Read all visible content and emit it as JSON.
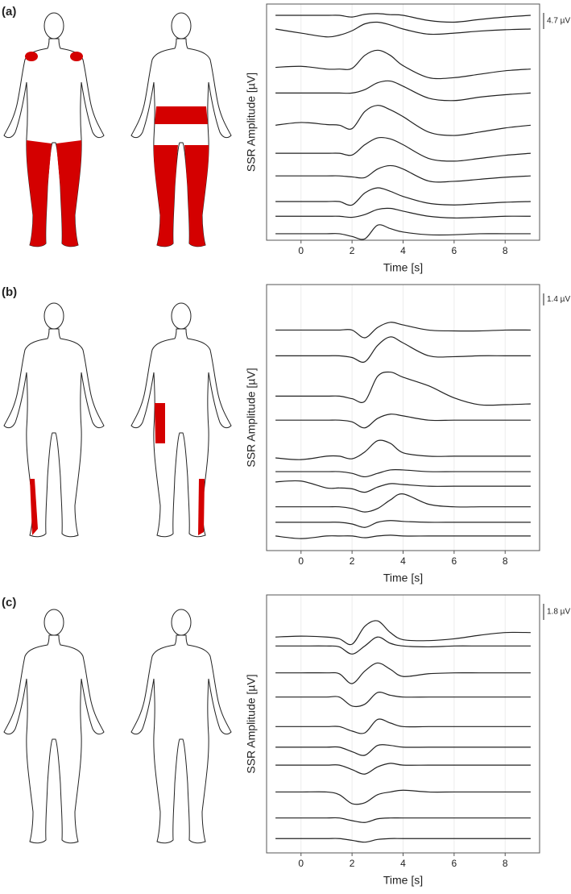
{
  "chart_data": [
    {
      "type": "line",
      "panel_label": "(a)",
      "xlabel": "Time [s]",
      "ylabel": "SSR Amplitude [µV]",
      "xlim": [
        -1.35,
        9.35
      ],
      "ylim": [
        0,
        69
      ],
      "xticks": [
        0,
        2,
        4,
        6,
        8
      ],
      "grid": true,
      "scale_bar": {
        "value": 4.7,
        "label": "4.7 µV"
      },
      "x": [
        -1,
        0,
        1,
        1.5,
        2,
        2.5,
        3,
        3.5,
        4,
        5,
        6,
        7,
        8,
        9
      ],
      "series": [
        {
          "color": "#222222",
          "values": [
            65.7,
            65.7,
            65.7,
            65.7,
            65.2,
            66.0,
            66.2,
            65.9,
            65.7,
            64.2,
            63.7,
            64.5,
            65.2,
            65.7
          ]
        },
        {
          "color": "#222222",
          "values": [
            61.7,
            60.5,
            59.4,
            59.9,
            61.2,
            63.2,
            63.7,
            62.9,
            61.7,
            60.2,
            60.5,
            61.1,
            61.5,
            61.7
          ]
        },
        {
          "color": "#222222",
          "values": [
            50.5,
            50.8,
            50,
            50,
            50.2,
            54,
            55.5,
            54,
            51,
            47.5,
            47.5,
            48.5,
            49.5,
            50
          ]
        },
        {
          "color": "#222222",
          "values": [
            43,
            43,
            43,
            43,
            43,
            44,
            46,
            46.5,
            45,
            41.5,
            40.8,
            41.8,
            42.5,
            43
          ]
        },
        {
          "color": "#222222",
          "values": [
            33.6,
            34.4,
            33.8,
            33.6,
            32.6,
            37.6,
            39.4,
            38.1,
            36.1,
            31.6,
            30.6,
            31.6,
            32.8,
            33.6
          ]
        },
        {
          "color": "#222222",
          "values": [
            25.4,
            25.4,
            25.4,
            25.4,
            24.9,
            27.9,
            29.9,
            29.6,
            27.9,
            23.9,
            23.1,
            23.9,
            24.8,
            25.4
          ]
        },
        {
          "color": "#222222",
          "values": [
            18.8,
            18.8,
            18.8,
            18.8,
            18.5,
            18.3,
            20.8,
            21.8,
            20.8,
            17.3,
            17.2,
            17.8,
            18.4,
            18.8
          ]
        },
        {
          "color": "#222222",
          "values": [
            11.3,
            11.3,
            11.3,
            11.3,
            10.3,
            13.8,
            15.3,
            14.3,
            12.8,
            10.8,
            10.3,
            10.7,
            11.1,
            11.3
          ]
        },
        {
          "color": "#222222",
          "values": [
            7,
            7,
            7,
            7,
            6.7,
            7.5,
            9,
            9.3,
            8.5,
            7,
            6.5,
            6.7,
            7,
            7
          ]
        },
        {
          "color": "#222222",
          "values": [
            1.9,
            1.9,
            1.9,
            1.9,
            1.1,
            0.4,
            4.4,
            3.4,
            2.4,
            1.6,
            1.6,
            1.9,
            1.9,
            1.9
          ]
        }
      ]
    },
    {
      "type": "line",
      "panel_label": "(b)",
      "xlabel": "Time [s]",
      "ylabel": "SSR Amplitude [µV]",
      "xlim": [
        -1.35,
        9.35
      ],
      "ylim": [
        0,
        31
      ],
      "xticks": [
        0,
        2,
        4,
        6,
        8
      ],
      "grid": true,
      "scale_bar": {
        "value": 1.4,
        "label": "1.4 µV"
      },
      "x": [
        -1,
        0,
        1,
        1.5,
        2,
        2.5,
        3,
        3.5,
        4,
        5,
        6,
        7,
        8,
        9
      ],
      "series": [
        {
          "color": "#222222",
          "values": [
            25.7,
            25.7,
            25.7,
            25.7,
            25.7,
            24.8,
            26,
            26.6,
            26.3,
            25.7,
            25.6,
            25.6,
            25.7,
            25.7
          ]
        },
        {
          "color": "#222222",
          "values": [
            22.7,
            22.7,
            22.7,
            22.7,
            22.5,
            22,
            23.9,
            24.9,
            24.2,
            22.7,
            22.6,
            22.7,
            22.7,
            22.7
          ]
        },
        {
          "color": "#222222",
          "values": [
            18,
            18,
            18,
            18,
            17.7,
            17.4,
            20.3,
            20.8,
            20.2,
            19.2,
            17.8,
            17,
            17,
            17.1
          ]
        },
        {
          "color": "#222222",
          "values": [
            15.2,
            15.2,
            15.2,
            15.2,
            15,
            14.3,
            15.4,
            15.9,
            15.7,
            15.2,
            15.2,
            15.2,
            15.2,
            15.2
          ]
        },
        {
          "color": "#222222",
          "values": [
            10.8,
            10.6,
            11,
            11,
            10.7,
            11.5,
            12.8,
            12.5,
            11.4,
            11,
            11,
            11,
            11,
            11
          ]
        },
        {
          "color": "#222222",
          "values": [
            9.2,
            9.2,
            9.2,
            9.2,
            9,
            8.6,
            9,
            9.4,
            9.4,
            9.2,
            9.2,
            9.2,
            9.2,
            9.2
          ]
        },
        {
          "color": "#222222",
          "values": [
            8,
            8.1,
            7.3,
            7.3,
            7.2,
            6.8,
            7.4,
            7.8,
            7.7,
            7.5,
            7.5,
            7.5,
            7.5,
            7.5
          ]
        },
        {
          "color": "#222222",
          "values": [
            5.1,
            5.1,
            5.1,
            5.1,
            4.9,
            4.5,
            4.9,
            5.9,
            6.6,
            5.4,
            5.1,
            5.1,
            5.1,
            5.1
          ]
        },
        {
          "color": "#222222",
          "values": [
            3.3,
            3.3,
            3.3,
            3.3,
            3.1,
            2.7,
            3.3,
            3.5,
            3.4,
            3.3,
            3.3,
            3.3,
            3.3,
            3.3
          ]
        },
        {
          "color": "#222222",
          "values": [
            1.7,
            1.4,
            1.7,
            1.7,
            1.7,
            1.5,
            1.7,
            1.8,
            1.7,
            1.7,
            1.7,
            1.7,
            1.7,
            1.7
          ]
        }
      ]
    },
    {
      "type": "line",
      "panel_label": "(c)",
      "xlabel": "Time [s]",
      "ylabel": "SSR Amplitude [µV]",
      "xlim": [
        -1.35,
        9.35
      ],
      "ylim": [
        0,
        28.8
      ],
      "xticks": [
        0,
        2,
        4,
        6,
        8
      ],
      "grid": true,
      "scale_bar": {
        "value": 1.8,
        "label": "1.8 µV"
      },
      "x": [
        -1,
        0,
        1,
        1.5,
        2,
        2.5,
        3,
        3.5,
        4,
        5,
        6,
        7,
        8,
        9
      ],
      "series": [
        {
          "color": "#222222",
          "values": [
            24.1,
            24.2,
            24.1,
            23.9,
            23.3,
            25.3,
            25.9,
            24.6,
            23.8,
            23.7,
            23.9,
            24.3,
            24.6,
            24.6
          ]
        },
        {
          "color": "#222222",
          "values": [
            23.1,
            23.1,
            23.1,
            23,
            22.2,
            23.1,
            24.1,
            23.4,
            23.1,
            23,
            23.1,
            23.1,
            23.1,
            23.1
          ]
        },
        {
          "color": "#222222",
          "values": [
            20.1,
            20.1,
            20.1,
            20,
            18.9,
            20.3,
            21.2,
            20.5,
            19.7,
            20,
            20.1,
            20.1,
            20.1,
            20.1
          ]
        },
        {
          "color": "#222222",
          "values": [
            17.4,
            17.4,
            17.4,
            17.4,
            16.4,
            16.6,
            17.9,
            17.6,
            17.4,
            17.4,
            17.4,
            17.4,
            17.4,
            17.4
          ]
        },
        {
          "color": "#222222",
          "values": [
            14.1,
            14.1,
            14.1,
            14.1,
            13.6,
            13.4,
            14.9,
            14.5,
            14.1,
            14.1,
            14.1,
            14.1,
            14.1,
            14.1
          ]
        },
        {
          "color": "#222222",
          "values": [
            11.8,
            11.8,
            11.8,
            11.8,
            11.3,
            10.9,
            12,
            12,
            11.8,
            11.8,
            11.8,
            11.8,
            11.8,
            11.8
          ]
        },
        {
          "color": "#222222",
          "values": [
            9.8,
            9.8,
            9.8,
            9.8,
            9.3,
            8.8,
            9.6,
            10,
            9.8,
            9.8,
            9.8,
            9.8,
            9.8,
            9.8
          ]
        },
        {
          "color": "#222222",
          "values": [
            6.8,
            6.8,
            6.8,
            6.5,
            5.5,
            5.6,
            6.5,
            6.8,
            7,
            6.8,
            6.8,
            6.8,
            6.8,
            6.8
          ]
        },
        {
          "color": "#222222",
          "values": [
            3.9,
            3.9,
            3.9,
            3.9,
            3.6,
            3.4,
            3.8,
            3.9,
            3.9,
            3.9,
            3.9,
            3.9,
            3.9,
            3.9
          ]
        },
        {
          "color": "#222222",
          "values": [
            1.6,
            1.6,
            1.6,
            1.6,
            1.4,
            1.2,
            1.5,
            1.6,
            1.6,
            1.6,
            1.6,
            1.6,
            1.6,
            1.6
          ]
        }
      ]
    }
  ]
}
